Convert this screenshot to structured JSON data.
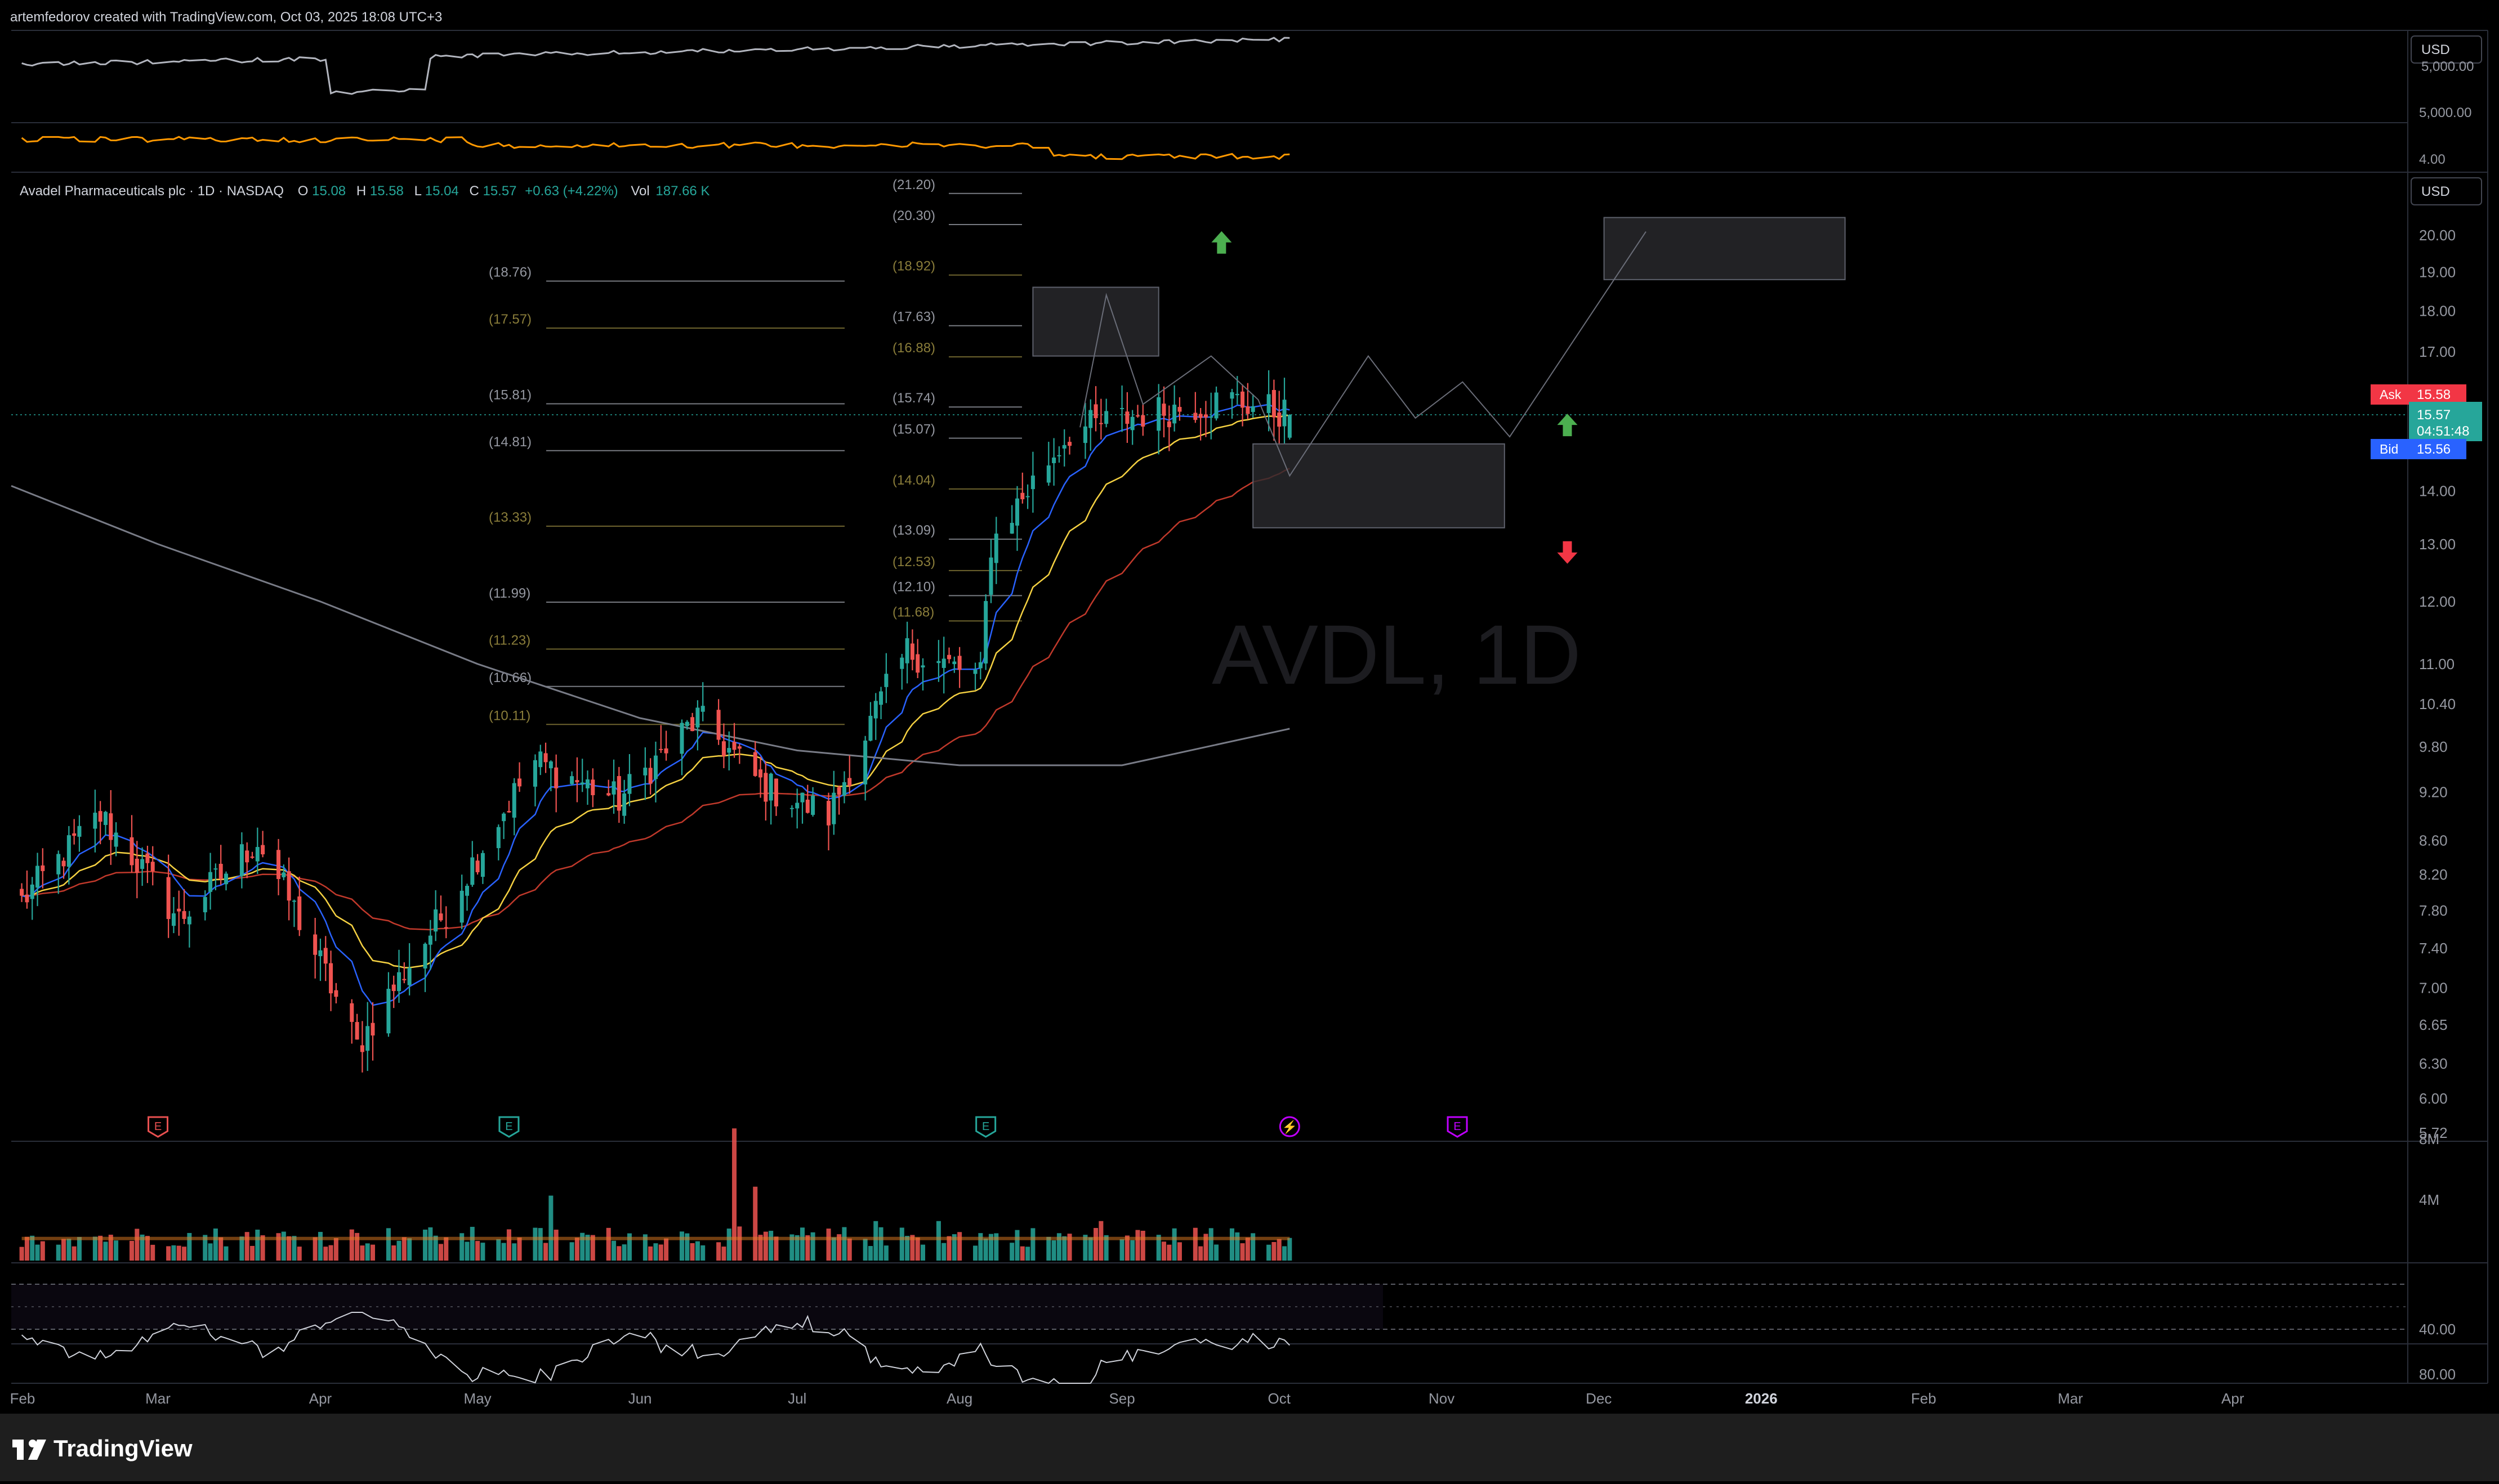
{
  "header": {
    "attribution": "artemfedorov created with TradingView.com, Oct 03, 2025 18:08 UTC+3"
  },
  "footer": {
    "brand": "TradingView"
  },
  "colors": {
    "background": "#000000",
    "bull": "#26a69a",
    "bear": "#ef5350",
    "ask": "#f23645",
    "bid": "#2962ff",
    "ema_fast": "#2962ff",
    "ema_mid": "#f5d142",
    "ema_slow": "#c0392b",
    "ma_long": "#787b86",
    "fib_label": "#8a7d3a",
    "fib_label_gray": "#9598a1",
    "arrow_up": "#4caf50",
    "arrow_down": "#f23645",
    "earnings_red": "#e85050",
    "earnings_green": "#26a69a",
    "earnings_purple": "#c000ff"
  },
  "legend": {
    "name": "Avadel Pharmaceuticals plc · 1D · NASDAQ",
    "o_label": "O",
    "o_value": "15.08",
    "h_label": "H",
    "h_value": "15.58",
    "l_label": "L",
    "l_value": "15.04",
    "c_label": "C",
    "c_value": "15.57",
    "change": "+0.63 (+4.22%)",
    "vol_label": "Vol",
    "vol_value": "187.66 K",
    "watermark": "AVDL, 1D"
  },
  "top_pane": {
    "currency": "USD",
    "y_labels": [
      "5,000.00",
      "4.00"
    ],
    "partial_label": "5,000.00"
  },
  "price_axis": {
    "currency": "USD",
    "labels": [
      "20.00",
      "19.00",
      "18.00",
      "17.00",
      "14.00",
      "13.00",
      "12.00",
      "11.00",
      "10.40",
      "9.80",
      "9.20",
      "8.60",
      "8.20",
      "7.80",
      "7.40",
      "7.00",
      "6.65",
      "6.30",
      "6.00",
      "5.72"
    ],
    "ask_label": "Ask",
    "ask_value": "15.58",
    "last_value": "15.57",
    "countdown": "04:51:48",
    "bid_label": "Bid",
    "bid_value": "15.56"
  },
  "volume_axis": {
    "labels": [
      "8M",
      "4M"
    ]
  },
  "rsi_axis": {
    "labels": [
      "80.00",
      "40.00"
    ]
  },
  "time_axis": {
    "labels": [
      "Feb",
      "Mar",
      "Apr",
      "May",
      "Jun",
      "Jul",
      "Aug",
      "Sep",
      "Oct",
      "Nov",
      "Dec",
      "2026",
      "Feb",
      "Mar",
      "Apr"
    ]
  },
  "fib_left": [
    {
      "label": "(18.76)",
      "value": 18.76,
      "tone": "gray"
    },
    {
      "label": "(17.57)",
      "value": 17.57,
      "tone": "gold"
    },
    {
      "label": "(15.81)",
      "value": 15.81,
      "tone": "gray"
    },
    {
      "label": "(14.81)",
      "value": 14.81,
      "tone": "gray"
    },
    {
      "label": "(13.33)",
      "value": 13.33,
      "tone": "gold"
    },
    {
      "label": "(11.99)",
      "value": 11.99,
      "tone": "gray"
    },
    {
      "label": "(11.23)",
      "value": 11.23,
      "tone": "gold"
    },
    {
      "label": "(10.66)",
      "value": 10.66,
      "tone": "gray"
    },
    {
      "label": "(10.11)",
      "value": 10.11,
      "tone": "gold"
    }
  ],
  "fib_right": [
    {
      "label": "(21.20)",
      "value": 21.2,
      "tone": "gray"
    },
    {
      "label": "(20.30)",
      "value": 20.3,
      "tone": "gray"
    },
    {
      "label": "(18.92)",
      "value": 18.92,
      "tone": "gold"
    },
    {
      "label": "(17.63)",
      "value": 17.63,
      "tone": "gray"
    },
    {
      "label": "(16.88)",
      "value": 16.88,
      "tone": "gold"
    },
    {
      "label": "(15.74)",
      "value": 15.74,
      "tone": "gray"
    },
    {
      "label": "(15.07)",
      "value": 15.07,
      "tone": "gray"
    },
    {
      "label": "(14.04)",
      "value": 14.04,
      "tone": "gold"
    },
    {
      "label": "(13.09)",
      "value": 13.09,
      "tone": "gray"
    },
    {
      "label": "(12.53)",
      "value": 12.53,
      "tone": "gold"
    },
    {
      "label": "(12.10)",
      "value": 12.1,
      "tone": "gray"
    },
    {
      "label": "(11.68)",
      "value": 11.68,
      "tone": "gold"
    }
  ],
  "chart_data": {
    "type": "candlestick",
    "symbol": "AVDL",
    "interval": "1D",
    "ylim": [
      5.72,
      21.5
    ],
    "log_scale": true,
    "x_range": [
      "2025-02-01",
      "2026-04-30"
    ],
    "last_bar_date": "2025-10-03",
    "ohlc_keypoints": [
      {
        "date": "2025-02-03",
        "close": 7.9
      },
      {
        "date": "2025-02-18",
        "close": 8.9
      },
      {
        "date": "2025-03-05",
        "close": 7.7
      },
      {
        "date": "2025-03-20",
        "close": 8.6
      },
      {
        "date": "2025-04-08",
        "close": 6.45
      },
      {
        "date": "2025-04-25",
        "close": 7.8
      },
      {
        "date": "2025-05-12",
        "close": 9.6
      },
      {
        "date": "2025-05-28",
        "close": 9.1
      },
      {
        "date": "2025-06-12",
        "close": 10.2
      },
      {
        "date": "2025-06-24",
        "close": 9.3
      },
      {
        "date": "2025-07-07",
        "close": 8.9
      },
      {
        "date": "2025-07-22",
        "close": 11.2
      },
      {
        "date": "2025-08-05",
        "close": 10.8
      },
      {
        "date": "2025-08-07",
        "close": 13.0
      },
      {
        "date": "2025-08-22",
        "close": 15.2
      },
      {
        "date": "2025-09-05",
        "close": 15.6
      },
      {
        "date": "2025-09-22",
        "close": 15.9
      },
      {
        "date": "2025-10-03",
        "close": 15.57
      }
    ],
    "overlays": [
      {
        "name": "ema_fast",
        "color": "#2962ff"
      },
      {
        "name": "ema_mid",
        "color": "#f5d142"
      },
      {
        "name": "ema_slow",
        "color": "#c0392b"
      },
      {
        "name": "ma_long",
        "color": "#787b86"
      }
    ],
    "projection_path": [
      {
        "date": "2025-08-24",
        "price": 15.3
      },
      {
        "date": "2025-08-29",
        "price": 18.4
      },
      {
        "date": "2025-09-05",
        "price": 15.8
      },
      {
        "date": "2025-09-18",
        "price": 16.9
      },
      {
        "date": "2025-09-27",
        "price": 15.9
      },
      {
        "date": "2025-10-03",
        "price": 14.3
      },
      {
        "date": "2025-10-18",
        "price": 16.9
      },
      {
        "date": "2025-10-27",
        "price": 15.5
      },
      {
        "date": "2025-11-05",
        "price": 16.3
      },
      {
        "date": "2025-11-14",
        "price": 15.1
      },
      {
        "date": "2025-12-10",
        "price": 20.1
      }
    ],
    "zones": [
      {
        "start": "2025-08-15",
        "end": "2025-09-08",
        "top": 18.6,
        "bottom": 16.9
      },
      {
        "start": "2025-09-26",
        "end": "2025-11-13",
        "top": 14.95,
        "bottom": 13.3
      },
      {
        "start": "2025-12-02",
        "end": "2026-01-17",
        "top": 20.5,
        "bottom": 18.8
      }
    ],
    "arrows": [
      {
        "date": "2025-09-20",
        "price": 19.8,
        "direction": "up"
      },
      {
        "date": "2025-11-25",
        "price": 15.35,
        "direction": "up"
      },
      {
        "date": "2025-11-25",
        "price": 12.85,
        "direction": "down"
      }
    ],
    "event_markers": [
      {
        "date": "2025-03-01",
        "symbol": "E",
        "color": "#e85050"
      },
      {
        "date": "2025-05-07",
        "symbol": "E",
        "color": "#26a69a"
      },
      {
        "date": "2025-08-06",
        "symbol": "E",
        "color": "#26a69a"
      },
      {
        "date": "2025-10-03",
        "symbol": "⚡",
        "color": "#c000ff"
      },
      {
        "date": "2025-11-04",
        "symbol": "E",
        "color": "#c000ff"
      }
    ],
    "volume": {
      "ylim_m": [
        0,
        10
      ],
      "spike_date": "2025-06-19",
      "spike_m": 8.7,
      "typical_m": 1.5
    },
    "rsi": {
      "upper": 80,
      "lower": 40,
      "last": 55
    }
  }
}
